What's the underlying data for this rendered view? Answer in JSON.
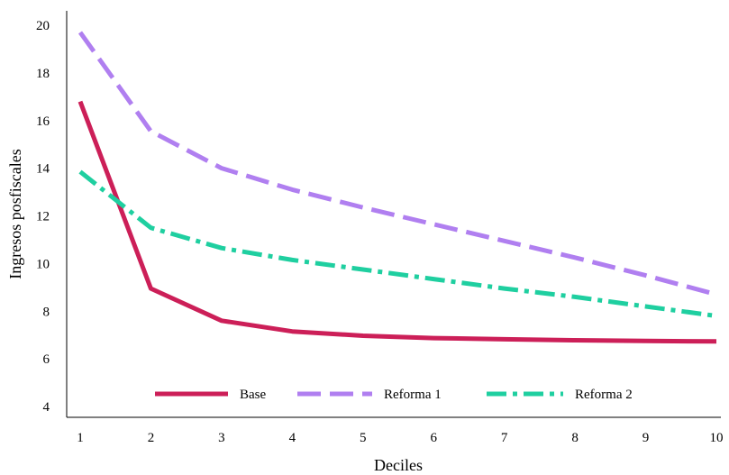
{
  "chart_data": {
    "type": "line",
    "title": "",
    "xlabel": "Deciles",
    "ylabel": "Ingresos posfiscales",
    "x": [
      1,
      2,
      3,
      4,
      5,
      6,
      7,
      8,
      9,
      10
    ],
    "xticks": [
      "1",
      "2",
      "3",
      "4",
      "5",
      "6",
      "7",
      "8",
      "9",
      "10"
    ],
    "yticks": [
      "4",
      "6",
      "8",
      "10",
      "12",
      "14",
      "16",
      "18",
      "20"
    ],
    "ylim": [
      4,
      20.6
    ],
    "grid": false,
    "legend_position": "bottom-inside",
    "series": [
      {
        "name": "Base",
        "color": "#cc1f58",
        "dash": "solid",
        "values": [
          16.8,
          8.95,
          7.6,
          7.15,
          6.97,
          6.87,
          6.82,
          6.78,
          6.75,
          6.73
        ]
      },
      {
        "name": "Reforma 1",
        "color": "#b07ff0",
        "dash": "dashed",
        "values": [
          19.7,
          15.55,
          14.0,
          13.1,
          12.35,
          11.65,
          10.95,
          10.25,
          9.5,
          8.7
        ]
      },
      {
        "name": "Reforma 2",
        "color": "#1fcfa0",
        "dash": "dashdot",
        "values": [
          13.85,
          11.5,
          10.65,
          10.15,
          9.75,
          9.35,
          8.95,
          8.6,
          8.2,
          7.8
        ]
      }
    ]
  }
}
